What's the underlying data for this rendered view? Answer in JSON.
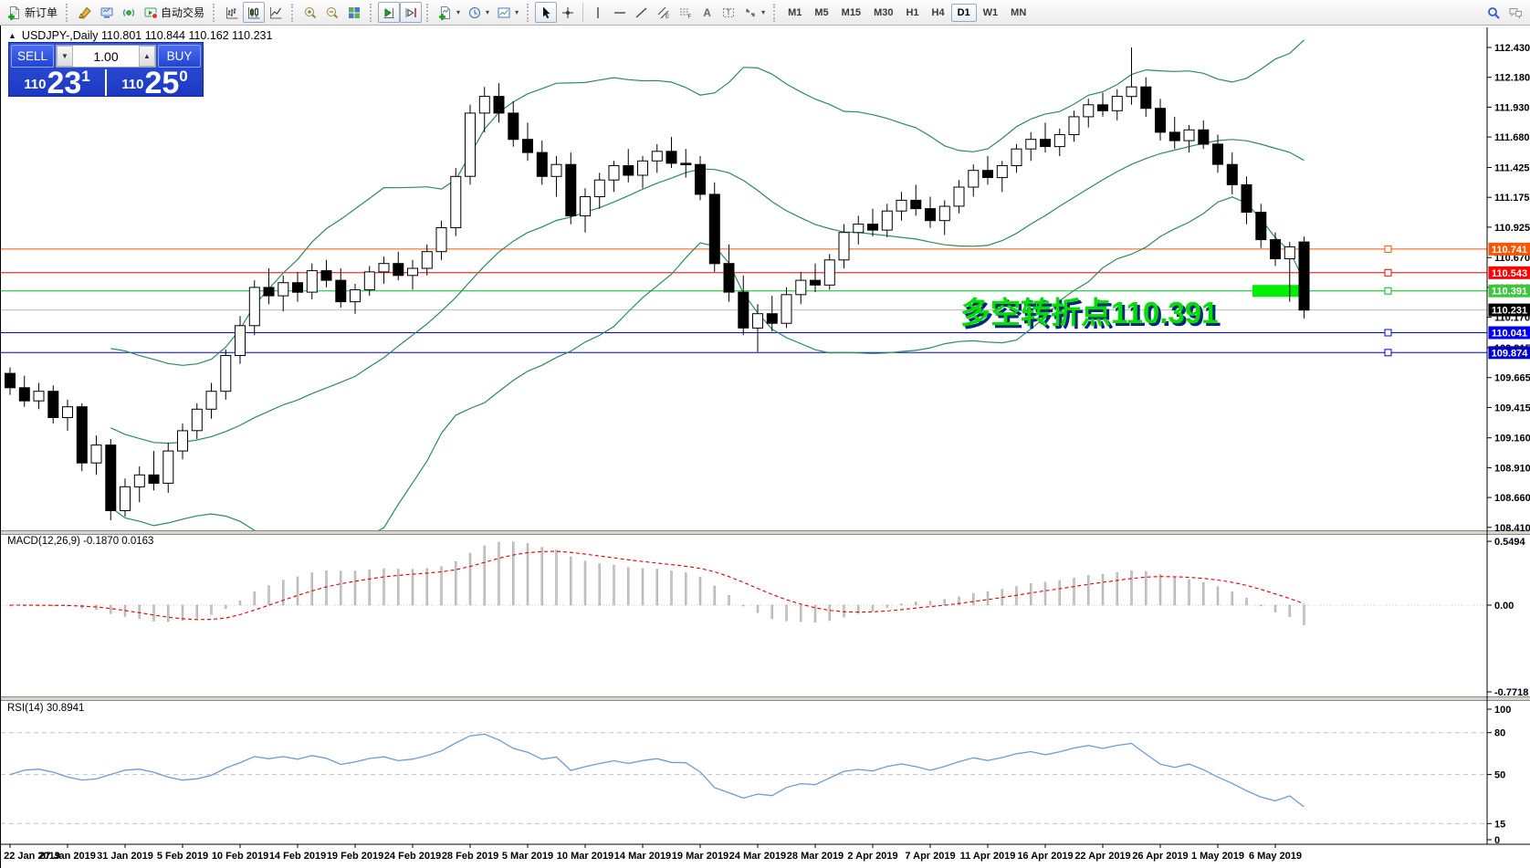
{
  "toolbar": {
    "new_order_label": "新订单",
    "autotrade_label": "自动交易",
    "timeframes": [
      "M1",
      "M5",
      "M15",
      "M30",
      "H1",
      "H4",
      "D1",
      "W1",
      "MN"
    ],
    "active_timeframe": "D1"
  },
  "chart_header": {
    "collapse_glyph": "▲",
    "title": "USDJPY-,Daily  110.801 110.844 110.162 110.231"
  },
  "trade_panel": {
    "sell_label": "SELL",
    "buy_label": "BUY",
    "volume": "1.00",
    "sell_price": {
      "prefix": "110",
      "big": "23",
      "sup": "1"
    },
    "buy_price": {
      "prefix": "110",
      "big": "25",
      "sup": "0"
    }
  },
  "chart_data": {
    "type": "candlestick",
    "symbol": "USDJPY-",
    "timeframe": "Daily",
    "current_bar": {
      "open": 110.801,
      "high": 110.844,
      "low": 110.162,
      "close": 110.231
    },
    "price_axis_ticks": [
      "112.430",
      "112.180",
      "111.930",
      "111.680",
      "111.425",
      "111.175",
      "110.925",
      "110.670",
      "110.420",
      "110.170",
      "109.915",
      "109.665",
      "109.415",
      "109.160",
      "108.910",
      "108.660",
      "108.410"
    ],
    "date_labels": [
      [
        0,
        "22 Jan 2019"
      ],
      [
        4,
        "27 Jan 2019"
      ],
      [
        8,
        "31 Jan 2019"
      ],
      [
        12,
        "5 Feb 2019"
      ],
      [
        16,
        "10 Feb 2019"
      ],
      [
        20,
        "14 Feb 2019"
      ],
      [
        24,
        "19 Feb 2019"
      ],
      [
        28,
        "24 Feb 2019"
      ],
      [
        32,
        "28 Feb 2019"
      ],
      [
        36,
        "5 Mar 2019"
      ],
      [
        40,
        "10 Mar 2019"
      ],
      [
        44,
        "14 Mar 2019"
      ],
      [
        48,
        "19 Mar 2019"
      ],
      [
        52,
        "24 Mar 2019"
      ],
      [
        56,
        "28 Mar 2019"
      ],
      [
        60,
        "2 Apr 2019"
      ],
      [
        64,
        "7 Apr 2019"
      ],
      [
        68,
        "11 Apr 2019"
      ],
      [
        72,
        "16 Apr 2019"
      ],
      [
        76,
        "22 Apr 2019"
      ],
      [
        80,
        "26 Apr 2019"
      ],
      [
        84,
        "1 May 2019"
      ],
      [
        88,
        "6 May 2019"
      ]
    ],
    "candles": [
      [
        109.7,
        109.75,
        109.52,
        109.58
      ],
      [
        109.58,
        109.68,
        109.42,
        109.47
      ],
      [
        109.47,
        109.62,
        109.4,
        109.55
      ],
      [
        109.55,
        109.6,
        109.28,
        109.33
      ],
      [
        109.33,
        109.48,
        109.22,
        109.42
      ],
      [
        109.42,
        109.45,
        108.88,
        108.95
      ],
      [
        108.95,
        109.18,
        108.85,
        109.1
      ],
      [
        109.1,
        109.15,
        108.47,
        108.55
      ],
      [
        108.55,
        108.82,
        108.5,
        108.75
      ],
      [
        108.75,
        108.92,
        108.62,
        108.85
      ],
      [
        108.85,
        109.05,
        108.72,
        108.78
      ],
      [
        108.78,
        109.12,
        108.7,
        109.05
      ],
      [
        109.05,
        109.28,
        108.98,
        109.22
      ],
      [
        109.22,
        109.45,
        109.15,
        109.4
      ],
      [
        109.4,
        109.62,
        109.32,
        109.55
      ],
      [
        109.55,
        109.9,
        109.48,
        109.85
      ],
      [
        109.85,
        110.18,
        109.78,
        110.1
      ],
      [
        110.1,
        110.48,
        110.02,
        110.42
      ],
      [
        110.42,
        110.58,
        110.28,
        110.35
      ],
      [
        110.35,
        110.52,
        110.22,
        110.46
      ],
      [
        110.46,
        110.55,
        110.3,
        110.38
      ],
      [
        110.38,
        110.62,
        110.32,
        110.56
      ],
      [
        110.56,
        110.65,
        110.42,
        110.48
      ],
      [
        110.48,
        110.58,
        110.25,
        110.3
      ],
      [
        110.3,
        110.45,
        110.2,
        110.4
      ],
      [
        110.4,
        110.6,
        110.35,
        110.55
      ],
      [
        110.55,
        110.68,
        110.45,
        110.62
      ],
      [
        110.62,
        110.72,
        110.48,
        110.52
      ],
      [
        110.52,
        110.65,
        110.4,
        110.58
      ],
      [
        110.58,
        110.78,
        110.52,
        110.72
      ],
      [
        110.72,
        110.98,
        110.65,
        110.92
      ],
      [
        110.92,
        111.42,
        110.85,
        111.35
      ],
      [
        111.35,
        111.95,
        111.28,
        111.88
      ],
      [
        111.88,
        112.1,
        111.72,
        112.02
      ],
      [
        112.02,
        112.13,
        111.8,
        111.88
      ],
      [
        111.88,
        111.98,
        111.6,
        111.66
      ],
      [
        111.66,
        111.8,
        111.48,
        111.55
      ],
      [
        111.55,
        111.65,
        111.28,
        111.35
      ],
      [
        111.35,
        111.52,
        111.18,
        111.45
      ],
      [
        111.45,
        111.55,
        110.95,
        111.02
      ],
      [
        111.02,
        111.25,
        110.88,
        111.18
      ],
      [
        111.18,
        111.38,
        111.08,
        111.32
      ],
      [
        111.32,
        111.48,
        111.22,
        111.44
      ],
      [
        111.44,
        111.58,
        111.3,
        111.36
      ],
      [
        111.36,
        111.52,
        111.25,
        111.48
      ],
      [
        111.48,
        111.62,
        111.38,
        111.56
      ],
      [
        111.56,
        111.68,
        111.42,
        111.46
      ],
      [
        111.46,
        111.58,
        111.34,
        111.45
      ],
      [
        111.45,
        111.52,
        111.15,
        111.2
      ],
      [
        111.2,
        111.3,
        110.55,
        110.62
      ],
      [
        110.62,
        110.78,
        110.3,
        110.38
      ],
      [
        110.38,
        110.52,
        110.02,
        110.08
      ],
      [
        110.08,
        110.28,
        109.88,
        110.2
      ],
      [
        110.2,
        110.35,
        110.05,
        110.12
      ],
      [
        110.12,
        110.42,
        110.08,
        110.36
      ],
      [
        110.36,
        110.55,
        110.28,
        110.48
      ],
      [
        110.48,
        110.62,
        110.38,
        110.44
      ],
      [
        110.44,
        110.7,
        110.4,
        110.65
      ],
      [
        110.65,
        110.95,
        110.58,
        110.88
      ],
      [
        110.88,
        111.02,
        110.78,
        110.95
      ],
      [
        110.95,
        111.08,
        110.85,
        110.9
      ],
      [
        110.9,
        111.12,
        110.84,
        111.06
      ],
      [
        111.06,
        111.22,
        110.98,
        111.15
      ],
      [
        111.15,
        111.28,
        111.02,
        111.08
      ],
      [
        111.08,
        111.18,
        110.92,
        110.98
      ],
      [
        110.98,
        111.15,
        110.86,
        111.1
      ],
      [
        111.1,
        111.32,
        111.04,
        111.26
      ],
      [
        111.26,
        111.45,
        111.18,
        111.4
      ],
      [
        111.4,
        111.52,
        111.28,
        111.34
      ],
      [
        111.34,
        111.48,
        111.22,
        111.44
      ],
      [
        111.44,
        111.62,
        111.38,
        111.58
      ],
      [
        111.58,
        111.72,
        111.48,
        111.66
      ],
      [
        111.66,
        111.8,
        111.55,
        111.6
      ],
      [
        111.6,
        111.75,
        111.52,
        111.7
      ],
      [
        111.7,
        111.9,
        111.64,
        111.85
      ],
      [
        111.85,
        112.0,
        111.76,
        111.95
      ],
      [
        111.95,
        112.05,
        111.85,
        111.9
      ],
      [
        111.9,
        112.08,
        111.82,
        112.02
      ],
      [
        112.02,
        112.43,
        111.95,
        112.1
      ],
      [
        112.1,
        112.18,
        111.85,
        111.92
      ],
      [
        111.92,
        112.0,
        111.65,
        111.72
      ],
      [
        111.72,
        111.85,
        111.58,
        111.65
      ],
      [
        111.65,
        111.78,
        111.55,
        111.74
      ],
      [
        111.74,
        111.82,
        111.58,
        111.62
      ],
      [
        111.62,
        111.7,
        111.38,
        111.45
      ],
      [
        111.45,
        111.55,
        111.2,
        111.28
      ],
      [
        111.28,
        111.35,
        110.95,
        111.05
      ],
      [
        111.05,
        111.12,
        110.75,
        110.82
      ],
      [
        110.82,
        110.88,
        110.6,
        110.66
      ],
      [
        110.66,
        110.8,
        110.3,
        110.76
      ],
      [
        110.801,
        110.844,
        110.162,
        110.231
      ]
    ],
    "bollinger": {
      "period": 20,
      "deviation": 2,
      "color": "#2E8B57"
    },
    "hlines": [
      {
        "price": 110.741,
        "label": "110.741",
        "color": "#FF5500",
        "label_bg": "#FF5500"
      },
      {
        "price": 110.543,
        "label": "110.543",
        "color": "#FF0000",
        "label_bg": "#FF0000"
      },
      {
        "price": 110.391,
        "label": "110.391",
        "color": "#00BB22",
        "label_bg": "#3FC43F"
      },
      {
        "price": 110.231,
        "label": "110.231",
        "color": "#BBBBBB",
        "label_bg": "#000000",
        "current": true
      },
      {
        "price": 110.041,
        "label": "110.041",
        "color": "#0000FF",
        "label_bg": "#0000EE"
      },
      {
        "price": 109.874,
        "label": "109.874",
        "color": "#0000E0",
        "label_bg": "#0000CC"
      }
    ],
    "highlight_bar": {
      "price": 110.391,
      "color": "#00EE00"
    },
    "annotation": {
      "text": "多空转折点110.391",
      "color": "#00DD00"
    },
    "macd": {
      "label": "MACD(12,26,9) -0.1870 0.0163",
      "params": [
        12,
        26,
        9
      ],
      "value": -0.187,
      "signal": 0.0163,
      "axis_ticks": [
        "0.5494",
        "0.00",
        "-0.7718"
      ],
      "histogram_color": "#C6C6C6",
      "signal_color": "#E00000"
    },
    "rsi": {
      "label": "RSI(14) 30.8941",
      "period": 14,
      "value": 30.8941,
      "axis_ticks": [
        "100",
        "80",
        "50",
        "15",
        "0"
      ],
      "levels": [
        80,
        50,
        15
      ],
      "line_color": "#6F9BD1"
    }
  }
}
